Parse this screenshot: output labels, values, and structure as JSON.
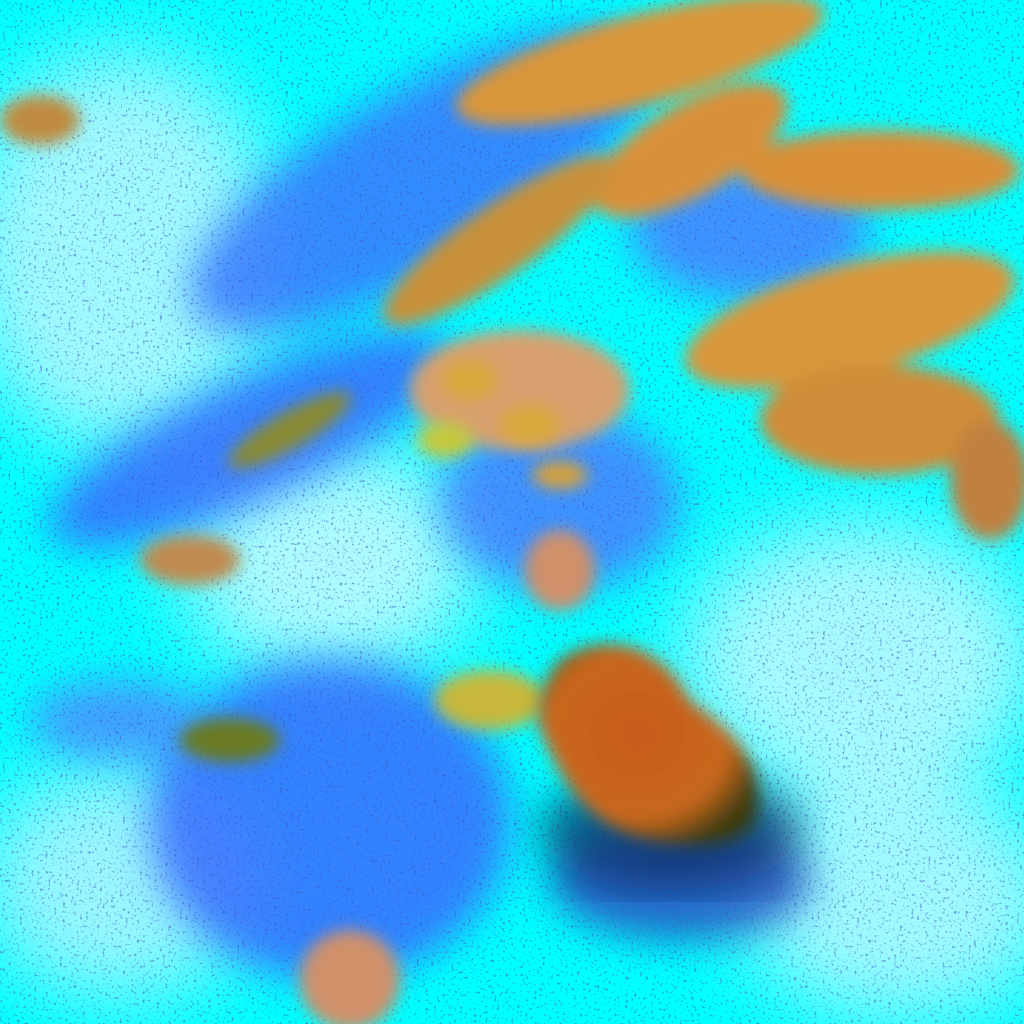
{
  "image": {
    "palette": {
      "clear_sky": "#00ffff",
      "haze": "#bff6ff",
      "thin_cloud": "#3a6cff",
      "cloud_tan": "#d9963a",
      "cloud_orange": "#d86a1c",
      "cloud_yellow": "#c8c83a",
      "shadow": "#0a2a60"
    }
  }
}
